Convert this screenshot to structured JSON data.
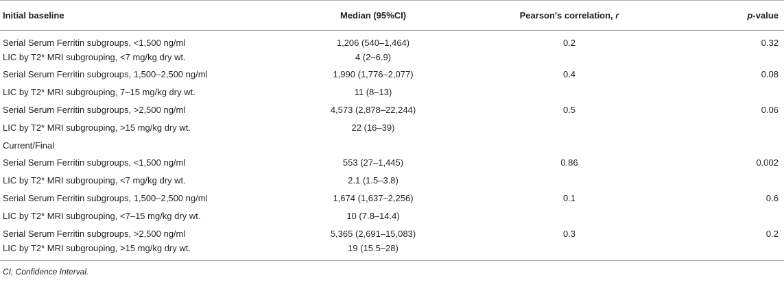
{
  "header": {
    "col1": "Initial baseline",
    "col2": "Median (95%CI)",
    "col3_prefix": "Pearson's correlation, ",
    "col3_var": "r",
    "col4_var": "p",
    "col4_suffix": "-value"
  },
  "rows": [
    {
      "label": "Serial Serum Ferritin subgroups, <1,500 ng/ml",
      "median": "1,206 (540–1,464)",
      "r": "0.2",
      "p": "0.32"
    },
    {
      "label": "LIC by T2* MRI subgrouping, <7 mg/kg dry wt.",
      "median": "4 (2–6.9)",
      "r": "",
      "p": ""
    },
    {
      "label": "Serial Serum Ferritin subgroups, 1,500–2,500 ng/ml",
      "median": "1,990 (1,776–2,077)",
      "r": "0.4",
      "p": "0.08"
    },
    {
      "label": "LIC by T2* MRI subgrouping, 7–15 mg/kg dry wt.",
      "median": "11 (8–13)",
      "r": "",
      "p": ""
    },
    {
      "label": "Serial Serum Ferritin subgroups, >2,500 ng/ml",
      "median": "4,573 (2,878–22,244)",
      "r": "0.5",
      "p": "0.06"
    },
    {
      "label": "LIC by T2* MRI subgrouping, >15 mg/kg dry wt.",
      "median": "22 (16–39)",
      "r": "",
      "p": ""
    },
    {
      "label": "Current/Final",
      "median": "",
      "r": "",
      "p": ""
    },
    {
      "label": "Serial Serum Ferritin subgroups, <1,500 ng/ml",
      "median": "553 (27–1,445)",
      "r": "0.86",
      "p": "0.002"
    },
    {
      "label": "LIC by T2* MRI subgrouping, <7 mg/kg dry wt.",
      "median": "2.1 (1.5–3.8)",
      "r": "",
      "p": ""
    },
    {
      "label": "Serial Serum Ferritin subgroups, 1,500–2,500 ng/ml",
      "median": "1,674 (1,637–2,256)",
      "r": "0.1",
      "p": "0.6"
    },
    {
      "label": "LIC by T2* MRI subgrouping, <7–15 mg/kg dry wt.",
      "median": "10 (7.8–14.4)",
      "r": "",
      "p": ""
    },
    {
      "label": "Serial Serum Ferritin subgroups, >2,500 ng/ml",
      "median": "5,365 (2,691–15,083)",
      "r": "0.3",
      "p": "0.2"
    },
    {
      "label": "LIC by T2* MRI subgrouping, >15 mg/kg dry wt.",
      "median": "19 (15.5–28)",
      "r": "",
      "p": ""
    }
  ],
  "footnote": "CI, Confidence Interval."
}
